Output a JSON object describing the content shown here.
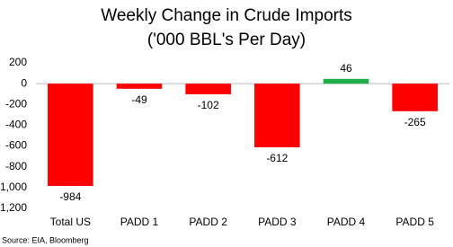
{
  "chart_data": {
    "type": "bar",
    "title": "Weekly Change in Crude Imports",
    "subtitle": "('000 BBL's Per Day)",
    "categories": [
      "Total US",
      "PADD 1",
      "PADD 2",
      "PADD 3",
      "PADD 4",
      "PADD 5"
    ],
    "values": [
      -984,
      -49,
      -102,
      -612,
      46,
      -265
    ],
    "colors": [
      "#ff0000",
      "#ff0000",
      "#ff0000",
      "#ff0000",
      "#1fae4a",
      "#ff0000"
    ],
    "ylim": [
      -1200,
      200
    ],
    "yticks": [
      200,
      0,
      -200,
      -400,
      -600,
      -800,
      {
        "value": -1000,
        "label": "-1,000"
      },
      {
        "value": -1200,
        "label": "-1,200"
      }
    ],
    "grid": false,
    "source": "Source: EIA, Bloomberg"
  }
}
